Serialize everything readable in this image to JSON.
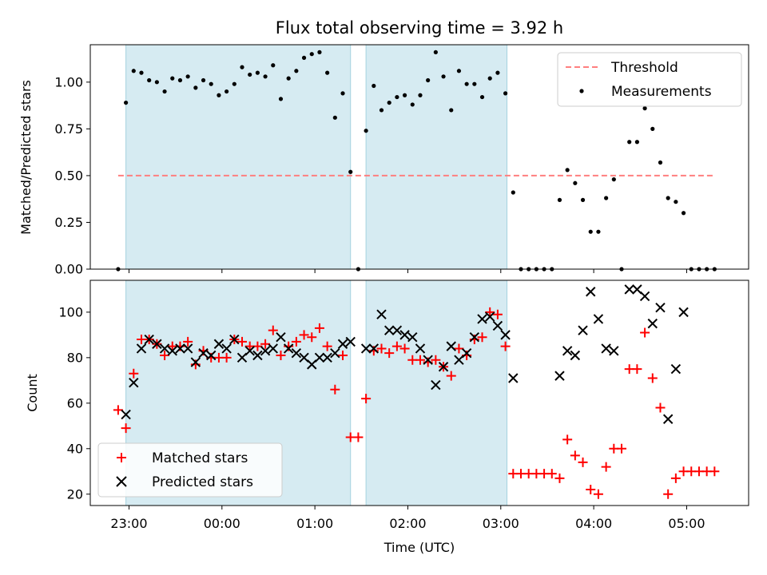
{
  "chart_data": [
    {
      "type": "scatter",
      "title": "Flux total observing time = 3.92 h",
      "ylabel": "Matched/Predicted stars",
      "xlim": [
        "22:35",
        "05:40"
      ],
      "ylim": [
        0,
        1.2
      ],
      "yticks": [
        "0.00",
        "0.25",
        "0.50",
        "0.75",
        "1.00"
      ],
      "legend_position": "upper right",
      "shaded_intervals": [
        [
          "22:58",
          "01:23"
        ],
        [
          "01:33",
          "03:04"
        ]
      ],
      "threshold": {
        "name": "Threshold",
        "value": 0.5,
        "x_range": [
          "22:53",
          "05:18"
        ],
        "color": "#ff7f7f"
      },
      "series": [
        {
          "name": "Measurements",
          "color": "#000000",
          "marker": "dot",
          "points": [
            [
              "22:53",
              0.0
            ],
            [
              "22:58",
              0.89
            ],
            [
              "23:03",
              1.06
            ],
            [
              "23:08",
              1.05
            ],
            [
              "23:13",
              1.01
            ],
            [
              "23:18",
              1.0
            ],
            [
              "23:23",
              0.95
            ],
            [
              "23:28",
              1.02
            ],
            [
              "23:33",
              1.01
            ],
            [
              "23:38",
              1.03
            ],
            [
              "23:43",
              0.97
            ],
            [
              "23:48",
              1.01
            ],
            [
              "23:53",
              0.99
            ],
            [
              "23:58",
              0.93
            ],
            [
              "00:03",
              0.95
            ],
            [
              "00:08",
              0.99
            ],
            [
              "00:13",
              1.08
            ],
            [
              "00:18",
              1.04
            ],
            [
              "00:23",
              1.05
            ],
            [
              "00:28",
              1.03
            ],
            [
              "00:33",
              1.09
            ],
            [
              "00:38",
              0.91
            ],
            [
              "00:43",
              1.02
            ],
            [
              "00:48",
              1.06
            ],
            [
              "00:53",
              1.13
            ],
            [
              "00:58",
              1.15
            ],
            [
              "01:03",
              1.16
            ],
            [
              "01:08",
              1.05
            ],
            [
              "01:13",
              0.81
            ],
            [
              "01:18",
              0.94
            ],
            [
              "01:23",
              0.52
            ],
            [
              "01:28",
              0.0
            ],
            [
              "01:33",
              0.74
            ],
            [
              "01:38",
              0.98
            ],
            [
              "01:43",
              0.85
            ],
            [
              "01:48",
              0.89
            ],
            [
              "01:53",
              0.92
            ],
            [
              "01:58",
              0.93
            ],
            [
              "02:03",
              0.88
            ],
            [
              "02:08",
              0.93
            ],
            [
              "02:13",
              1.01
            ],
            [
              "02:18",
              1.16
            ],
            [
              "02:23",
              1.03
            ],
            [
              "02:28",
              0.85
            ],
            [
              "02:33",
              1.06
            ],
            [
              "02:38",
              0.99
            ],
            [
              "02:43",
              0.99
            ],
            [
              "02:48",
              0.92
            ],
            [
              "02:53",
              1.02
            ],
            [
              "02:58",
              1.05
            ],
            [
              "03:03",
              0.94
            ],
            [
              "03:08",
              0.41
            ],
            [
              "03:13",
              0.0
            ],
            [
              "03:18",
              0.0
            ],
            [
              "03:23",
              0.0
            ],
            [
              "03:28",
              0.0
            ],
            [
              "03:33",
              0.0
            ],
            [
              "03:38",
              0.37
            ],
            [
              "03:43",
              0.53
            ],
            [
              "03:48",
              0.46
            ],
            [
              "03:53",
              0.37
            ],
            [
              "03:58",
              0.2
            ],
            [
              "04:03",
              0.2
            ],
            [
              "04:08",
              0.38
            ],
            [
              "04:13",
              0.48
            ],
            [
              "04:18",
              0.0
            ],
            [
              "04:23",
              0.68
            ],
            [
              "04:28",
              0.68
            ],
            [
              "04:33",
              0.86
            ],
            [
              "04:38",
              0.75
            ],
            [
              "04:43",
              0.57
            ],
            [
              "04:48",
              0.38
            ],
            [
              "04:53",
              0.36
            ],
            [
              "04:58",
              0.3
            ],
            [
              "05:03",
              0.0
            ],
            [
              "05:08",
              0.0
            ],
            [
              "05:13",
              0.0
            ],
            [
              "05:18",
              0.0
            ]
          ]
        }
      ]
    },
    {
      "type": "scatter",
      "xlabel": "Time (UTC)",
      "ylabel": "Count",
      "xlim": [
        "22:35",
        "05:40"
      ],
      "ylim": [
        15,
        114
      ],
      "yticks": [
        "20",
        "40",
        "60",
        "80",
        "100"
      ],
      "xticks": [
        "23:00",
        "00:00",
        "01:00",
        "02:00",
        "03:00",
        "04:00",
        "05:00"
      ],
      "legend_position": "lower left",
      "shaded_intervals": [
        [
          "22:58",
          "01:23"
        ],
        [
          "01:33",
          "03:04"
        ]
      ],
      "series": [
        {
          "name": "Matched stars",
          "color": "#ff0000",
          "marker": "plus",
          "points": [
            [
              "22:53",
              57
            ],
            [
              "22:58",
              49
            ],
            [
              "23:03",
              73
            ],
            [
              "23:08",
              88
            ],
            [
              "23:13",
              88
            ],
            [
              "23:18",
              86
            ],
            [
              "23:23",
              81
            ],
            [
              "23:28",
              85
            ],
            [
              "23:33",
              85
            ],
            [
              "23:38",
              87
            ],
            [
              "23:43",
              77
            ],
            [
              "23:48",
              83
            ],
            [
              "23:53",
              80
            ],
            [
              "23:58",
              80
            ],
            [
              "00:03",
              80
            ],
            [
              "00:08",
              88
            ],
            [
              "00:13",
              87
            ],
            [
              "00:18",
              85
            ],
            [
              "00:23",
              85
            ],
            [
              "00:28",
              86
            ],
            [
              "00:33",
              92
            ],
            [
              "00:38",
              81
            ],
            [
              "00:43",
              85
            ],
            [
              "00:48",
              87
            ],
            [
              "00:53",
              90
            ],
            [
              "00:58",
              89
            ],
            [
              "01:03",
              93
            ],
            [
              "01:08",
              85
            ],
            [
              "01:13",
              66
            ],
            [
              "01:18",
              81
            ],
            [
              "01:23",
              45
            ],
            [
              "01:28",
              45
            ],
            [
              "01:33",
              62
            ],
            [
              "01:38",
              83
            ],
            [
              "01:43",
              84
            ],
            [
              "01:48",
              82
            ],
            [
              "01:53",
              85
            ],
            [
              "01:58",
              84
            ],
            [
              "02:03",
              79
            ],
            [
              "02:08",
              79
            ],
            [
              "02:13",
              78
            ],
            [
              "02:18",
              79
            ],
            [
              "02:23",
              76
            ],
            [
              "02:28",
              72
            ],
            [
              "02:33",
              84
            ],
            [
              "02:38",
              81
            ],
            [
              "02:43",
              88
            ],
            [
              "02:48",
              89
            ],
            [
              "02:53",
              100
            ],
            [
              "02:58",
              99
            ],
            [
              "03:03",
              85
            ],
            [
              "03:08",
              29
            ],
            [
              "03:13",
              29
            ],
            [
              "03:18",
              29
            ],
            [
              "03:23",
              29
            ],
            [
              "03:28",
              29
            ],
            [
              "03:33",
              29
            ],
            [
              "03:38",
              27
            ],
            [
              "03:43",
              44
            ],
            [
              "03:48",
              37
            ],
            [
              "03:53",
              34
            ],
            [
              "03:58",
              22
            ],
            [
              "04:03",
              20
            ],
            [
              "04:08",
              32
            ],
            [
              "04:13",
              40
            ],
            [
              "04:18",
              40
            ],
            [
              "04:23",
              75
            ],
            [
              "04:28",
              75
            ],
            [
              "04:33",
              91
            ],
            [
              "04:38",
              71
            ],
            [
              "04:43",
              58
            ],
            [
              "04:48",
              20
            ],
            [
              "04:53",
              27
            ],
            [
              "04:58",
              30
            ],
            [
              "05:03",
              30
            ],
            [
              "05:08",
              30
            ],
            [
              "05:13",
              30
            ],
            [
              "05:18",
              30
            ]
          ]
        },
        {
          "name": "Predicted stars",
          "color": "#000000",
          "marker": "x",
          "points": [
            [
              "22:58",
              55
            ],
            [
              "23:03",
              69
            ],
            [
              "23:08",
              84
            ],
            [
              "23:13",
              88
            ],
            [
              "23:18",
              86
            ],
            [
              "23:23",
              84
            ],
            [
              "23:28",
              83
            ],
            [
              "23:33",
              84
            ],
            [
              "23:38",
              84
            ],
            [
              "23:43",
              78
            ],
            [
              "23:48",
              82
            ],
            [
              "23:53",
              81
            ],
            [
              "23:58",
              86
            ],
            [
              "00:03",
              84
            ],
            [
              "00:08",
              88
            ],
            [
              "00:13",
              80
            ],
            [
              "00:18",
              83
            ],
            [
              "00:23",
              81
            ],
            [
              "00:28",
              83
            ],
            [
              "00:33",
              84
            ],
            [
              "00:38",
              89
            ],
            [
              "00:43",
              84
            ],
            [
              "00:48",
              82
            ],
            [
              "00:53",
              80
            ],
            [
              "00:58",
              77
            ],
            [
              "01:03",
              80
            ],
            [
              "01:08",
              80
            ],
            [
              "01:13",
              82
            ],
            [
              "01:18",
              86
            ],
            [
              "01:23",
              87
            ],
            [
              "01:33",
              84
            ],
            [
              "01:38",
              84
            ],
            [
              "01:43",
              99
            ],
            [
              "01:48",
              92
            ],
            [
              "01:53",
              92
            ],
            [
              "01:58",
              90
            ],
            [
              "02:03",
              89
            ],
            [
              "02:08",
              84
            ],
            [
              "02:13",
              79
            ],
            [
              "02:18",
              68
            ],
            [
              "02:23",
              76
            ],
            [
              "02:28",
              85
            ],
            [
              "02:33",
              79
            ],
            [
              "02:38",
              82
            ],
            [
              "02:43",
              89
            ],
            [
              "02:48",
              97
            ],
            [
              "02:53",
              98
            ],
            [
              "02:58",
              94
            ],
            [
              "03:03",
              90
            ],
            [
              "03:08",
              71
            ],
            [
              "03:38",
              72
            ],
            [
              "03:43",
              83
            ],
            [
              "03:48",
              81
            ],
            [
              "03:53",
              92
            ],
            [
              "03:58",
              109
            ],
            [
              "04:03",
              97
            ],
            [
              "04:08",
              84
            ],
            [
              "04:13",
              83
            ],
            [
              "04:23",
              110
            ],
            [
              "04:28",
              110
            ],
            [
              "04:33",
              107
            ],
            [
              "04:38",
              95
            ],
            [
              "04:43",
              102
            ],
            [
              "04:48",
              53
            ],
            [
              "04:53",
              75
            ],
            [
              "04:58",
              100
            ]
          ]
        }
      ]
    }
  ]
}
